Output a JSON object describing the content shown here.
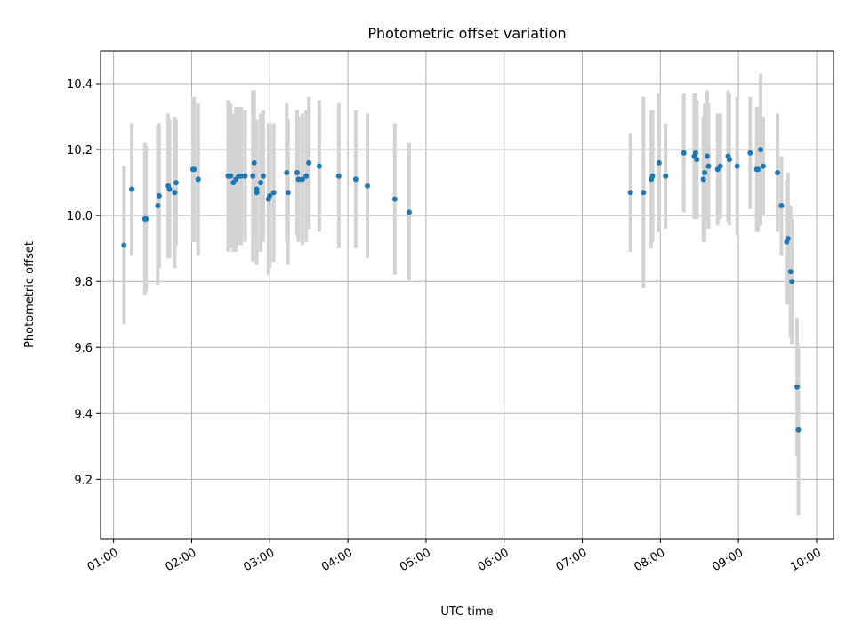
{
  "chart_data": {
    "type": "scatter",
    "title": "Photometric offset variation",
    "xlabel": "UTC time",
    "ylabel": "Photometric offset",
    "xlim": [
      "00:50",
      "10:13"
    ],
    "ylim": [
      9.02,
      10.5
    ],
    "grid": true,
    "x_ticks": [
      "01:00",
      "02:00",
      "03:00",
      "04:00",
      "05:00",
      "06:00",
      "07:00",
      "08:00",
      "09:00",
      "10:00"
    ],
    "y_ticks": [
      9.2,
      9.4,
      9.6,
      9.8,
      10.0,
      10.2,
      10.4
    ],
    "y_tick_labels": [
      "9.2",
      "9.4",
      "9.6",
      "9.8",
      "10.0",
      "10.2",
      "10.4"
    ],
    "colors": {
      "point": "#1f77b4",
      "errorbar": "#d3d3d3",
      "grid": "#b0b0b0"
    },
    "series": [
      {
        "x": [
          "01:08",
          "01:14",
          "01:24",
          "01:25",
          "01:34",
          "01:35",
          "01:42",
          "01:43",
          "01:47",
          "01:48",
          "02:01",
          "02:02",
          "02:05",
          "02:28",
          "02:30",
          "02:32",
          "02:34",
          "02:36",
          "02:38",
          "02:41",
          "02:47",
          "02:48",
          "02:50",
          "02:50",
          "02:53",
          "02:55",
          "02:59",
          "03:00",
          "03:03",
          "03:13",
          "03:14",
          "03:21",
          "03:22",
          "03:25",
          "03:28",
          "03:30",
          "03:38",
          "03:53",
          "04:06",
          "04:15",
          "04:36",
          "04:47",
          "07:37",
          "07:47",
          "07:53",
          "07:54",
          "07:59",
          "08:04",
          "08:18",
          "08:26",
          "08:27",
          "08:28",
          "08:33",
          "08:34",
          "08:36",
          "08:37",
          "08:44",
          "08:46",
          "08:52",
          "08:53",
          "08:59",
          "09:09",
          "09:14",
          "09:15",
          "09:17",
          "09:19",
          "09:30",
          "09:33",
          "09:37",
          "09:38",
          "09:40",
          "09:41",
          "09:45",
          "09:46"
        ],
        "y": [
          9.91,
          10.08,
          9.99,
          9.99,
          10.03,
          10.06,
          10.09,
          10.08,
          10.07,
          10.1,
          10.14,
          10.14,
          10.11,
          10.12,
          10.12,
          10.1,
          10.11,
          10.12,
          10.12,
          10.12,
          10.12,
          10.16,
          10.07,
          10.08,
          10.1,
          10.12,
          10.05,
          10.06,
          10.07,
          10.13,
          10.07,
          10.13,
          10.11,
          10.11,
          10.12,
          10.16,
          10.15,
          10.12,
          10.11,
          10.09,
          10.05,
          10.01,
          10.07,
          10.07,
          10.11,
          10.12,
          10.16,
          10.12,
          10.19,
          10.18,
          10.19,
          10.17,
          10.11,
          10.13,
          10.18,
          10.15,
          10.14,
          10.15,
          10.18,
          10.17,
          10.15,
          10.19,
          10.14,
          10.14,
          10.2,
          10.15,
          10.13,
          10.03,
          9.92,
          9.93,
          9.83,
          9.8,
          9.48,
          9.35
        ],
        "yerr": [
          0.24,
          0.2,
          0.23,
          0.22,
          0.24,
          0.22,
          0.22,
          0.21,
          0.23,
          0.19,
          0.22,
          0.22,
          0.23,
          0.23,
          0.22,
          0.21,
          0.22,
          0.21,
          0.21,
          0.2,
          0.26,
          0.22,
          0.22,
          0.21,
          0.21,
          0.2,
          0.23,
          0.22,
          0.21,
          0.21,
          0.22,
          0.19,
          0.19,
          0.2,
          0.2,
          0.2,
          0.2,
          0.22,
          0.21,
          0.22,
          0.23,
          0.21,
          0.18,
          0.29,
          0.21,
          0.2,
          0.21,
          0.16,
          0.18,
          0.19,
          0.18,
          0.18,
          0.19,
          0.21,
          0.2,
          0.19,
          0.17,
          0.16,
          0.2,
          0.2,
          0.21,
          0.17,
          0.19,
          0.19,
          0.23,
          0.15,
          0.18,
          0.15,
          0.19,
          0.2,
          0.2,
          0.19,
          0.21,
          0.26
        ]
      }
    ]
  }
}
